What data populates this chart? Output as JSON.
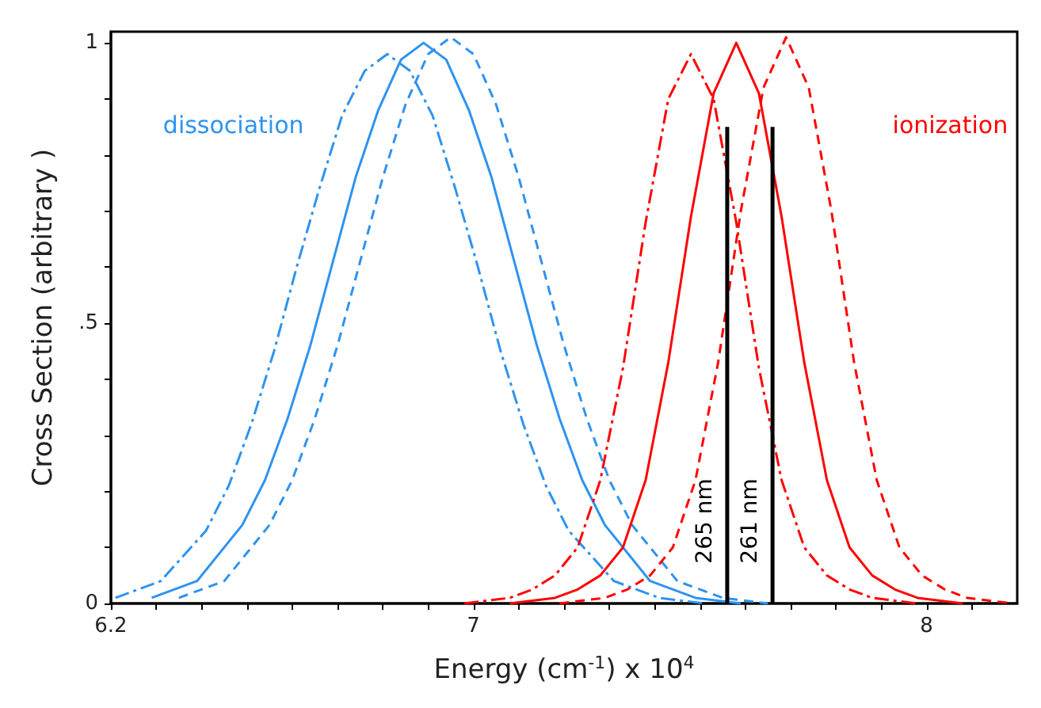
{
  "chart_data": {
    "type": "line",
    "xlabel": "Energy (cm$^{-1}$) x 10$^{4}$",
    "ylabel": "Cross Section (arbitrary )",
    "xlim": [
      6.2,
      8.2
    ],
    "ylim": [
      0,
      1.02
    ],
    "xticks": [
      6.2,
      {
        "value": 6.3,
        "label": null
      },
      {
        "value": 6.4,
        "label": null
      },
      {
        "value": 6.5,
        "label": null
      },
      {
        "value": 6.6,
        "label": null
      },
      {
        "value": 6.7,
        "label": null
      },
      {
        "value": 6.8,
        "label": null
      },
      {
        "value": 6.9,
        "label": null
      },
      7,
      {
        "value": 7.1,
        "label": null
      },
      {
        "value": 7.2,
        "label": null
      },
      {
        "value": 7.3,
        "label": null
      },
      {
        "value": 7.4,
        "label": null
      },
      {
        "value": 7.5,
        "label": null
      },
      {
        "value": 7.6,
        "label": null
      },
      {
        "value": 7.7,
        "label": null
      },
      {
        "value": 7.8,
        "label": null
      },
      {
        "value": 7.9,
        "label": null
      },
      8,
      {
        "value": 8.1,
        "label": null
      }
    ],
    "yticks": [
      0,
      {
        "value": 0.1,
        "label": null
      },
      {
        "value": 0.2,
        "label": null
      },
      {
        "value": 0.3,
        "label": null
      },
      {
        "value": 0.4,
        "label": null
      },
      {
        "value": 0.5,
        "label": ".5"
      },
      {
        "value": 0.6,
        "label": null
      },
      {
        "value": 0.7,
        "label": null
      },
      {
        "value": 0.8,
        "label": null
      },
      {
        "value": 0.9,
        "label": null
      },
      1
    ],
    "grid": false,
    "legend": false,
    "marker": "none",
    "series": [
      {
        "name": "dissociation",
        "color": "#2e93f0",
        "line_style": "solid",
        "x": [
          6.29,
          6.39,
          6.49,
          6.54,
          6.59,
          6.64,
          6.69,
          6.74,
          6.79,
          6.84,
          6.89,
          6.94,
          6.99,
          7.04,
          7.09,
          7.14,
          7.19,
          7.24,
          7.29,
          7.39,
          7.49,
          7.59
        ],
        "values": [
          0.01,
          0.04,
          0.14,
          0.22,
          0.33,
          0.46,
          0.61,
          0.76,
          0.88,
          0.97,
          1,
          0.97,
          0.88,
          0.76,
          0.61,
          0.46,
          0.33,
          0.22,
          0.14,
          0.04,
          0.01,
          0
        ]
      },
      {
        "color": "#2e93f0",
        "line_style": "dashed",
        "x": [
          6.35,
          6.45,
          6.55,
          6.6,
          6.65,
          6.7,
          6.75,
          6.8,
          6.85,
          6.9,
          6.95,
          7.0,
          7.05,
          7.1,
          7.15,
          7.2,
          7.25,
          7.3,
          7.35,
          7.45,
          7.55,
          7.65
        ],
        "values": [
          0.01,
          0.04,
          0.14,
          0.22,
          0.33,
          0.46,
          0.61,
          0.76,
          0.89,
          0.98,
          1.01,
          0.98,
          0.89,
          0.76,
          0.61,
          0.46,
          0.33,
          0.22,
          0.14,
          0.04,
          0.01,
          0
        ]
      },
      {
        "color": "#2e93f0",
        "line_style": "dashdot",
        "x": [
          6.21,
          6.31,
          6.41,
          6.46,
          6.51,
          6.56,
          6.61,
          6.66,
          6.71,
          6.76,
          6.81,
          6.86,
          6.91,
          6.96,
          7.01,
          7.06,
          7.11,
          7.16,
          7.21,
          7.31,
          7.41,
          7.51
        ],
        "values": [
          0.01,
          0.04,
          0.13,
          0.21,
          0.32,
          0.45,
          0.6,
          0.74,
          0.87,
          0.95,
          0.98,
          0.95,
          0.87,
          0.74,
          0.6,
          0.45,
          0.32,
          0.21,
          0.13,
          0.04,
          0.01,
          0
        ]
      },
      {
        "name": "ionization",
        "color": "#ff0000",
        "line_style": "solid",
        "x": [
          7.08,
          7.18,
          7.23,
          7.28,
          7.33,
          7.38,
          7.43,
          7.48,
          7.53,
          7.58,
          7.63,
          7.68,
          7.73,
          7.78,
          7.83,
          7.88,
          7.93,
          7.98,
          8.08
        ],
        "values": [
          0,
          0.01,
          0.025,
          0.05,
          0.1,
          0.22,
          0.43,
          0.69,
          0.91,
          1,
          0.91,
          0.69,
          0.43,
          0.22,
          0.1,
          0.05,
          0.025,
          0.01,
          0
        ]
      },
      {
        "color": "#ff0000",
        "line_style": "dashed",
        "x": [
          7.19,
          7.29,
          7.34,
          7.39,
          7.44,
          7.49,
          7.54,
          7.59,
          7.64,
          7.69,
          7.74,
          7.79,
          7.84,
          7.89,
          7.94,
          7.99,
          8.04,
          8.09,
          8.19
        ],
        "values": [
          0,
          0.01,
          0.025,
          0.05,
          0.1,
          0.22,
          0.43,
          0.7,
          0.92,
          1.01,
          0.92,
          0.7,
          0.43,
          0.22,
          0.1,
          0.05,
          0.025,
          0.01,
          0
        ]
      },
      {
        "color": "#ff0000",
        "line_style": "dashdot",
        "x": [
          6.98,
          7.08,
          7.13,
          7.18,
          7.23,
          7.28,
          7.33,
          7.38,
          7.43,
          7.48,
          7.53,
          7.58,
          7.63,
          7.68,
          7.73,
          7.78,
          7.83,
          7.88,
          7.98
        ],
        "values": [
          0,
          0.01,
          0.025,
          0.05,
          0.1,
          0.22,
          0.42,
          0.68,
          0.9,
          0.98,
          0.9,
          0.68,
          0.42,
          0.22,
          0.1,
          0.05,
          0.025,
          0.01,
          0
        ]
      },
      {
        "name": "265 nm",
        "color": "#000000",
        "line_style": "solid",
        "x": [
          7.56,
          7.56
        ],
        "values": [
          0,
          0.85
        ]
      },
      {
        "name": "261 nm",
        "color": "#000000",
        "line_style": "solid",
        "x": [
          7.66,
          7.66
        ],
        "values": [
          0,
          0.85
        ]
      }
    ]
  }
}
